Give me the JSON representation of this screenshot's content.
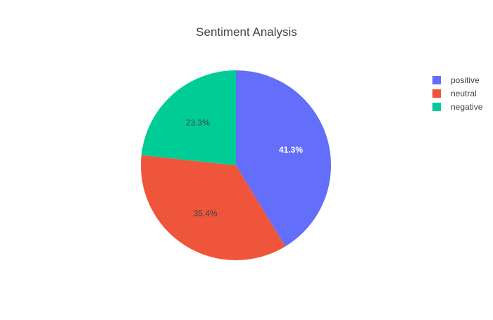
{
  "chart_data": {
    "type": "pie",
    "title": "Sentiment Analysis",
    "labels": [
      "positive",
      "neutral",
      "negative"
    ],
    "values": [
      41.3,
      35.4,
      23.3
    ],
    "value_labels": [
      "41.3%",
      "35.4%",
      "23.3%"
    ],
    "colors": [
      "#636efa",
      "#ef553b",
      "#00cc96"
    ],
    "legend_order": [
      "positive",
      "neutral",
      "negative"
    ],
    "legend_position": "top-right",
    "direction": "clockwise",
    "start_angle_deg": 90
  }
}
